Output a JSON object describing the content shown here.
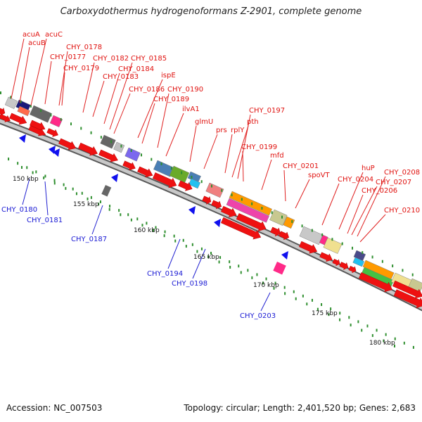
{
  "title": "Carboxydothermus hydrogenoformans Z-2901, complete genome",
  "footer": {
    "accession": "Accession: NC_007503",
    "summary": "Topology: circular; Length: 2,401,520 bp; Genes: 2,683"
  },
  "colors": {
    "forward_label": "#e0120f",
    "reverse_label": "#1a1ad4",
    "cds": "#ee1111",
    "reverse_cds": "#1010ee",
    "backbone": "#9a9a9a",
    "ticks": "#2f8f2f"
  },
  "scale": {
    "unit": "kbp",
    "labels": [
      "150 kbp",
      "155 kbp",
      "160 kbp",
      "165 kbp",
      "170 kbp",
      "175 kbp",
      "180 kbp"
    ]
  },
  "forward_genes": [
    "acuA",
    "acuB",
    "acuC",
    "CHY_0177",
    "CHY_0178",
    "CHY_0179",
    "CHY_0182",
    "CHY_0183",
    "CHY_0184",
    "CHY_0185",
    "CHY_0186",
    "ispE",
    "CHY_0189",
    "CHY_0190",
    "ilvA1",
    "glmU",
    "prs",
    "rplY",
    "pth",
    "CHY_0197",
    "CHY_0199",
    "mfd",
    "CHY_0201",
    "spoVT",
    "CHY_0204",
    "huP",
    "CHY_0206",
    "CHY_0207",
    "CHY_0208",
    "CHY_0210"
  ],
  "reverse_genes": [
    "CHY_0180",
    "CHY_0181",
    "CHY_0187",
    "CHY_0194",
    "CHY_0198",
    "CHY_0203"
  ]
}
